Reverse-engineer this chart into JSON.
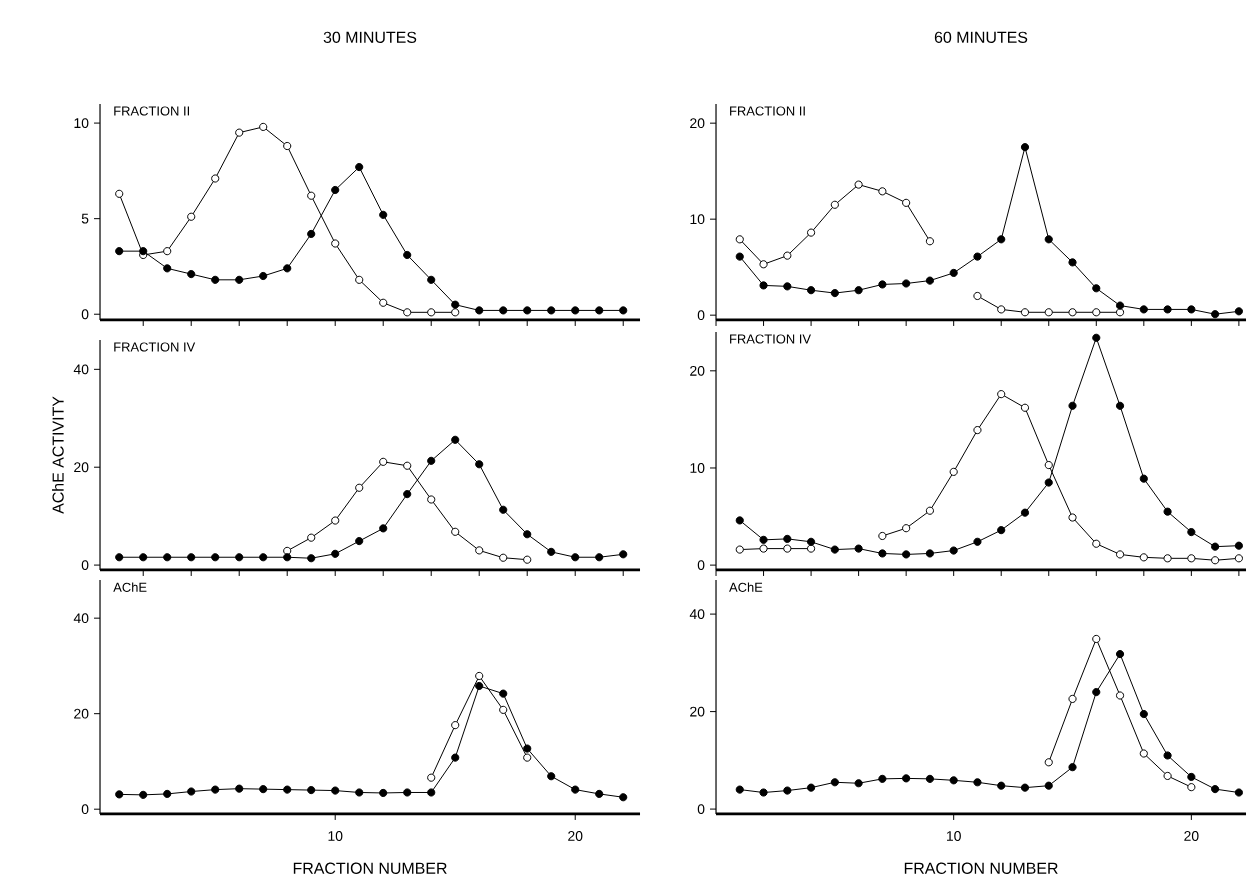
{
  "chart_data": [
    {
      "type": "line",
      "title": "30 MINUTES",
      "subtitle": "FRACTION II",
      "marker": "circle",
      "tick_labels": "y",
      "x": [
        1,
        2,
        3,
        4,
        5,
        6,
        7,
        8,
        9,
        10,
        11,
        12,
        13,
        14,
        15,
        16,
        17,
        18,
        19,
        20,
        21,
        22
      ],
      "xlim": [
        0.2,
        22.7
      ],
      "ylim": [
        -0.3,
        11
      ],
      "yticks": [
        0,
        5,
        10
      ],
      "series": [
        {
          "color": "#ffffff",
          "values": [
            6.3,
            3.1,
            3.3,
            5.1,
            7.1,
            9.5,
            9.8,
            8.8,
            6.2,
            3.7,
            1.8,
            0.6,
            0.1,
            0.1,
            0.1,
            null,
            null,
            null,
            null,
            null,
            null,
            null
          ]
        },
        {
          "color": "#000000",
          "values": [
            3.3,
            3.3,
            2.4,
            2.1,
            1.8,
            1.8,
            2.0,
            2.4,
            4.2,
            6.5,
            7.7,
            5.2,
            3.1,
            1.8,
            0.5,
            0.2,
            0.2,
            0.2,
            0.2,
            0.2,
            0.2,
            0.2
          ]
        }
      ]
    },
    {
      "type": "line",
      "subtitle": "FRACTION IV",
      "ylabel": "AChE ACTIVITY",
      "marker": "circle",
      "tick_labels": "y",
      "x": [
        1,
        2,
        3,
        4,
        5,
        6,
        7,
        8,
        9,
        10,
        11,
        12,
        13,
        14,
        15,
        16,
        17,
        18,
        19,
        20,
        21,
        22
      ],
      "xlim": [
        0.2,
        22.7
      ],
      "ylim": [
        -1,
        46
      ],
      "yticks": [
        0,
        20,
        40
      ],
      "series": [
        {
          "color": "#ffffff",
          "values": [
            null,
            null,
            null,
            null,
            null,
            null,
            null,
            2.9,
            5.6,
            9.1,
            15.8,
            21.1,
            20.3,
            13.4,
            6.8,
            3.0,
            1.5,
            1.1,
            null,
            null,
            null,
            null
          ]
        },
        {
          "color": "#000000",
          "values": [
            1.6,
            1.6,
            1.6,
            1.6,
            1.6,
            1.6,
            1.6,
            1.6,
            1.4,
            2.3,
            4.9,
            7.5,
            14.5,
            21.3,
            25.6,
            20.6,
            11.3,
            6.3,
            2.7,
            1.6,
            1.6,
            2.2
          ]
        }
      ]
    },
    {
      "type": "line",
      "subtitle": "AChE",
      "xlabel": "FRACTION NUMBER",
      "marker": "circle",
      "x": [
        1,
        2,
        3,
        4,
        5,
        6,
        7,
        8,
        9,
        10,
        11,
        12,
        13,
        14,
        15,
        16,
        17,
        18,
        19,
        20,
        21,
        22
      ],
      "xlim": [
        0.2,
        22.7
      ],
      "xticks": [
        10,
        20
      ],
      "ylim": [
        -1,
        48
      ],
      "yticks": [
        0,
        20,
        40
      ],
      "series": [
        {
          "color": "#ffffff",
          "values": [
            null,
            null,
            null,
            null,
            null,
            null,
            null,
            null,
            null,
            null,
            null,
            null,
            null,
            6.6,
            17.6,
            27.9,
            20.8,
            10.8,
            null,
            null,
            null,
            null
          ]
        },
        {
          "color": "#000000",
          "values": [
            3.1,
            3.0,
            3.2,
            3.7,
            4.1,
            4.3,
            4.2,
            4.1,
            4.0,
            3.9,
            3.5,
            3.4,
            3.5,
            3.5,
            10.8,
            25.8,
            24.2,
            12.7,
            6.9,
            4.1,
            3.2,
            2.5
          ]
        }
      ]
    },
    {
      "type": "line",
      "title": "60 MINUTES",
      "subtitle": "FRACTION II",
      "marker": "circle",
      "tick_labels": "y",
      "x": [
        1,
        2,
        3,
        4,
        5,
        6,
        7,
        8,
        9,
        10,
        11,
        12,
        13,
        14,
        15,
        16,
        17,
        18,
        19,
        20,
        21,
        22
      ],
      "xlim": [
        0,
        22.3
      ],
      "ylim": [
        -0.5,
        22
      ],
      "yticks": [
        0,
        10,
        20
      ],
      "series": [
        {
          "color": "#ffffff",
          "values": [
            7.9,
            5.3,
            6.2,
            8.6,
            11.5,
            13.6,
            12.9,
            11.7,
            7.7,
            null,
            2.0,
            0.6,
            0.3,
            0.3,
            0.3,
            0.3,
            0.3,
            null,
            null,
            null,
            null,
            null
          ]
        },
        {
          "color": "#000000",
          "values": [
            6.1,
            3.1,
            3.0,
            2.6,
            2.3,
            2.6,
            3.2,
            3.3,
            3.6,
            4.4,
            6.1,
            7.9,
            17.5,
            7.9,
            5.5,
            2.8,
            1.0,
            0.6,
            0.6,
            0.6,
            0.1,
            0.4
          ]
        }
      ]
    },
    {
      "type": "line",
      "subtitle": "FRACTION IV",
      "marker": "circle",
      "tick_labels": "y",
      "x": [
        1,
        2,
        3,
        4,
        5,
        6,
        7,
        8,
        9,
        10,
        11,
        12,
        13,
        14,
        15,
        16,
        17,
        18,
        19,
        20,
        21,
        22
      ],
      "xlim": [
        0,
        22.3
      ],
      "ylim": [
        -0.5,
        24
      ],
      "yticks": [
        0,
        10,
        20
      ],
      "series": [
        {
          "color": "#ffffff",
          "values": [
            1.6,
            1.7,
            1.7,
            1.7,
            null,
            null,
            3.0,
            3.8,
            5.6,
            9.6,
            13.9,
            17.6,
            16.2,
            10.3,
            4.9,
            2.2,
            1.1,
            0.8,
            0.7,
            0.7,
            0.5,
            0.7
          ]
        },
        {
          "color": "#000000",
          "values": [
            4.6,
            2.6,
            2.7,
            2.4,
            1.6,
            1.7,
            1.2,
            1.1,
            1.2,
            1.5,
            2.4,
            3.6,
            5.4,
            8.5,
            16.4,
            23.4,
            16.4,
            8.9,
            5.5,
            3.4,
            1.9,
            2.0
          ]
        }
      ]
    },
    {
      "type": "line",
      "subtitle": "AChE",
      "xlabel": "FRACTION NUMBER",
      "marker": "circle",
      "x": [
        1,
        2,
        3,
        4,
        5,
        6,
        7,
        8,
        9,
        10,
        11,
        12,
        13,
        14,
        15,
        16,
        17,
        18,
        19,
        20,
        21,
        22
      ],
      "xlim": [
        0,
        22.3
      ],
      "xticks": [
        10,
        20
      ],
      "ylim": [
        -1,
        47
      ],
      "yticks": [
        0,
        20,
        40
      ],
      "series": [
        {
          "color": "#ffffff",
          "values": [
            null,
            null,
            null,
            null,
            null,
            null,
            null,
            null,
            null,
            null,
            null,
            null,
            null,
            9.6,
            22.6,
            34.9,
            23.3,
            11.4,
            6.8,
            4.5,
            null,
            null
          ]
        },
        {
          "color": "#000000",
          "values": [
            4.0,
            3.4,
            3.8,
            4.4,
            5.5,
            5.3,
            6.2,
            6.3,
            6.2,
            5.9,
            5.5,
            4.8,
            4.4,
            4.8,
            8.6,
            24.0,
            31.8,
            19.5,
            11.0,
            6.6,
            4.1,
            3.4
          ]
        }
      ]
    }
  ]
}
